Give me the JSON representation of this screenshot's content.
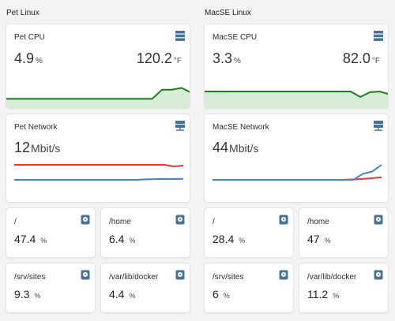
{
  "sections": [
    {
      "title": "Pet Linux",
      "cpu": {
        "title": "Pet CPU",
        "percent": "4.9",
        "percent_unit": "%",
        "temp": "120.2",
        "temp_unit": "°F"
      },
      "network": {
        "title": "Pet Network",
        "value": "12",
        "unit": "Mbit/s"
      },
      "disks": [
        {
          "path": "/",
          "value": "47.4",
          "unit": "%"
        },
        {
          "path": "/home",
          "value": "6.4",
          "unit": "%"
        },
        {
          "path": "/srv/sites",
          "value": "9.3",
          "unit": "%"
        },
        {
          "path": "/var/lib/docker",
          "value": "4.4",
          "unit": "%"
        }
      ]
    },
    {
      "title": "MacSE Linux",
      "cpu": {
        "title": "MacSE CPU",
        "percent": "3.3",
        "percent_unit": "%",
        "temp": "82.0",
        "temp_unit": "°F"
      },
      "network": {
        "title": "MacSE Network",
        "value": "44",
        "unit": "Mbit/s"
      },
      "disks": [
        {
          "path": "/",
          "value": "28.4",
          "unit": "%"
        },
        {
          "path": "/home",
          "value": "47",
          "unit": "%"
        },
        {
          "path": "/srv/sites",
          "value": "6",
          "unit": "%"
        },
        {
          "path": "/var/lib/docker",
          "value": "11.2",
          "unit": "%"
        }
      ]
    }
  ],
  "colors": {
    "cpu_line": "#1f7a1f",
    "cpu_fill": "#d7ecd5",
    "net_red": "#e53935",
    "net_blue": "#3a86c8",
    "icon": "#44739e"
  },
  "icons": {
    "cpu": "server-icon",
    "network": "network-server-icon",
    "disk": "harddisk-icon"
  },
  "chart_data": [
    {
      "type": "area",
      "series": [
        {
          "values": [
            0.3,
            0.3,
            0.3,
            0.3,
            0.3,
            0.3,
            0.3,
            0.3,
            0.3,
            0.3,
            0.3,
            0.3,
            0.3,
            0.3,
            0.3,
            0.3,
            0.55,
            0.55,
            0.6,
            0.47
          ]
        }
      ]
    },
    {
      "type": "area",
      "series": [
        {
          "values": [
            0.5,
            0.5,
            0.5,
            0.5,
            0.5,
            0.5,
            0.5,
            0.5,
            0.5,
            0.5,
            0.5,
            0.5,
            0.5,
            0.5,
            0.5,
            0.5,
            0.35,
            0.48,
            0.5,
            0.42
          ]
        }
      ]
    },
    {
      "type": "line",
      "series": [
        {
          "values": [
            20,
            20,
            20,
            20,
            20,
            20,
            20,
            20,
            20,
            20,
            20,
            20,
            20,
            20,
            20,
            20,
            20,
            18,
            19
          ]
        },
        {
          "values": [
            1,
            1,
            1,
            1,
            1,
            1,
            1,
            1,
            1,
            1,
            1,
            1,
            1,
            1,
            1.6,
            1.9,
            2.1,
            2.0,
            2.3
          ]
        }
      ]
    },
    {
      "type": "line",
      "series": [
        {
          "values": [
            1,
            1,
            1,
            1,
            1,
            1,
            1,
            1,
            1,
            1,
            1,
            1,
            1,
            1,
            1.2,
            1.6,
            2.2,
            3.3,
            4.4
          ]
        },
        {
          "values": [
            1,
            1,
            1,
            1,
            1,
            1,
            1,
            1,
            1,
            1,
            1,
            1,
            1,
            1,
            1,
            1,
            9,
            12,
            21
          ]
        }
      ]
    }
  ]
}
